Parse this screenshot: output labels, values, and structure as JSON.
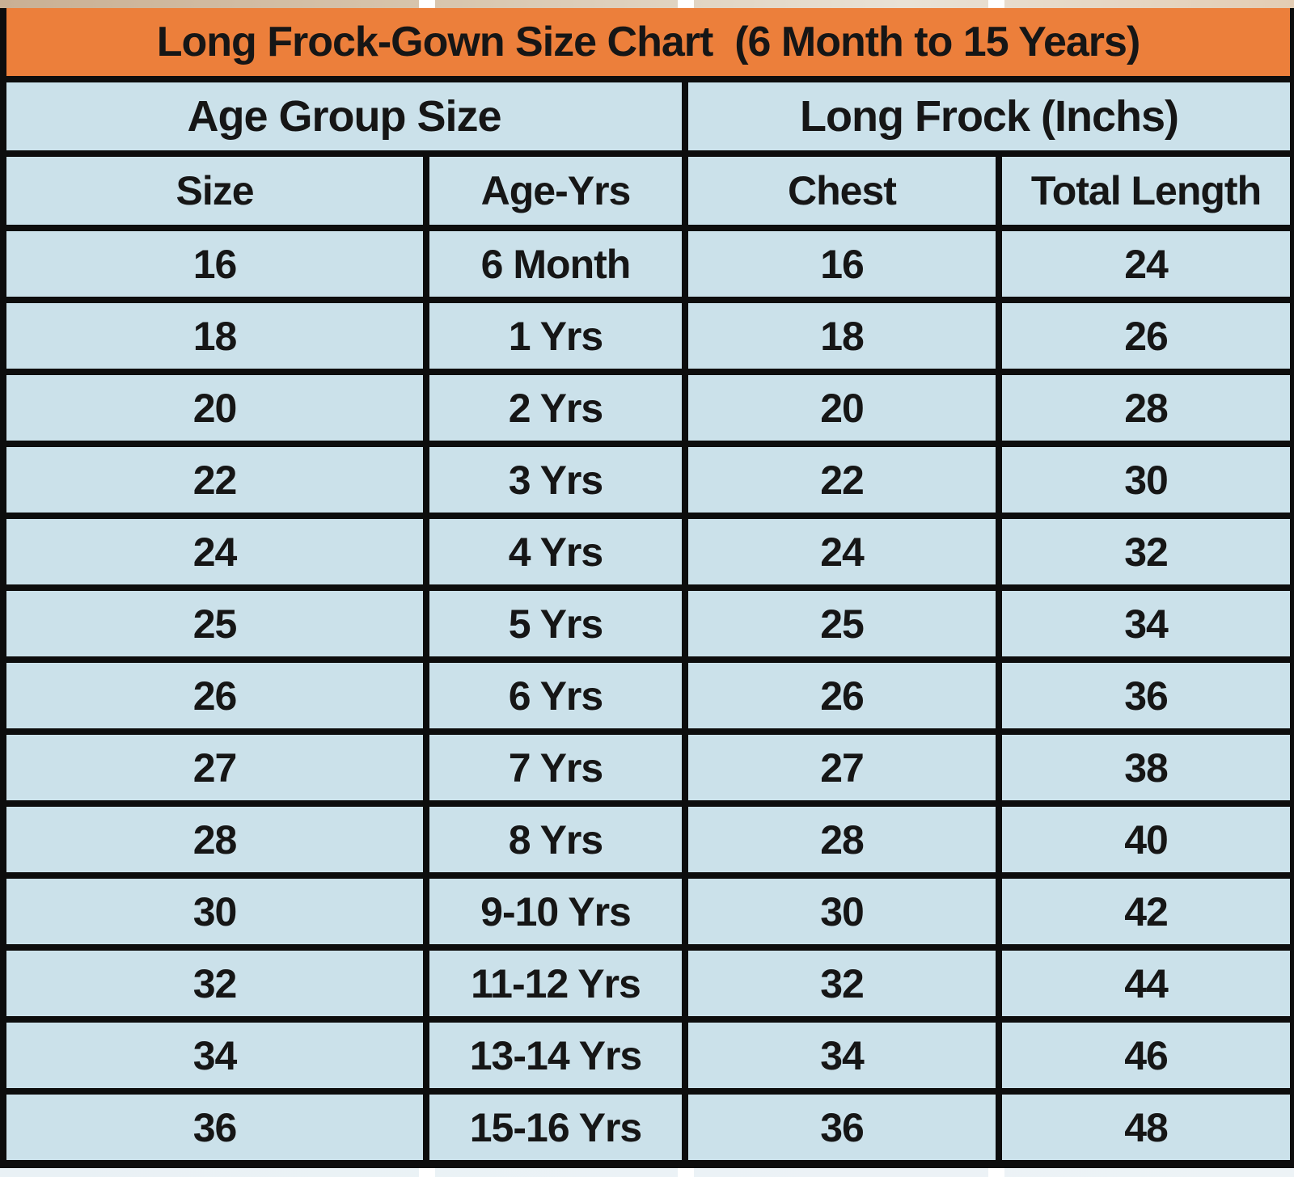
{
  "colors": {
    "title_bg": "#ec7f3b",
    "cell_bg": "#cbe1ea",
    "grid_border": "#0d0d0d",
    "text": "#161616"
  },
  "chart_data": {
    "type": "table",
    "title": "Long Frock-Gown Size Chart  (6 Month to 15 Years)",
    "column_groups": [
      {
        "label": "Age Group Size",
        "span": 2
      },
      {
        "label": "Long Frock (Inchs)",
        "span": 2
      }
    ],
    "columns": [
      "Size",
      "Age-Yrs",
      "Chest",
      "Total Length"
    ],
    "rows": [
      [
        "16",
        "6 Month",
        "16",
        "24"
      ],
      [
        "18",
        "1 Yrs",
        "18",
        "26"
      ],
      [
        "20",
        "2 Yrs",
        "20",
        "28"
      ],
      [
        "22",
        "3 Yrs",
        "22",
        "30"
      ],
      [
        "24",
        "4 Yrs",
        "24",
        "32"
      ],
      [
        "25",
        "5 Yrs",
        "25",
        "34"
      ],
      [
        "26",
        "6 Yrs",
        "26",
        "36"
      ],
      [
        "27",
        "7 Yrs",
        "27",
        "38"
      ],
      [
        "28",
        "8 Yrs",
        "28",
        "40"
      ],
      [
        "30",
        "9-10 Yrs",
        "30",
        "42"
      ],
      [
        "32",
        "11-12 Yrs",
        "32",
        "44"
      ],
      [
        "34",
        "13-14 Yrs",
        "34",
        "46"
      ],
      [
        "36",
        "15-16 Yrs",
        "36",
        "48"
      ]
    ],
    "layout": {
      "grid": "on",
      "title_position": "top-banner"
    }
  }
}
